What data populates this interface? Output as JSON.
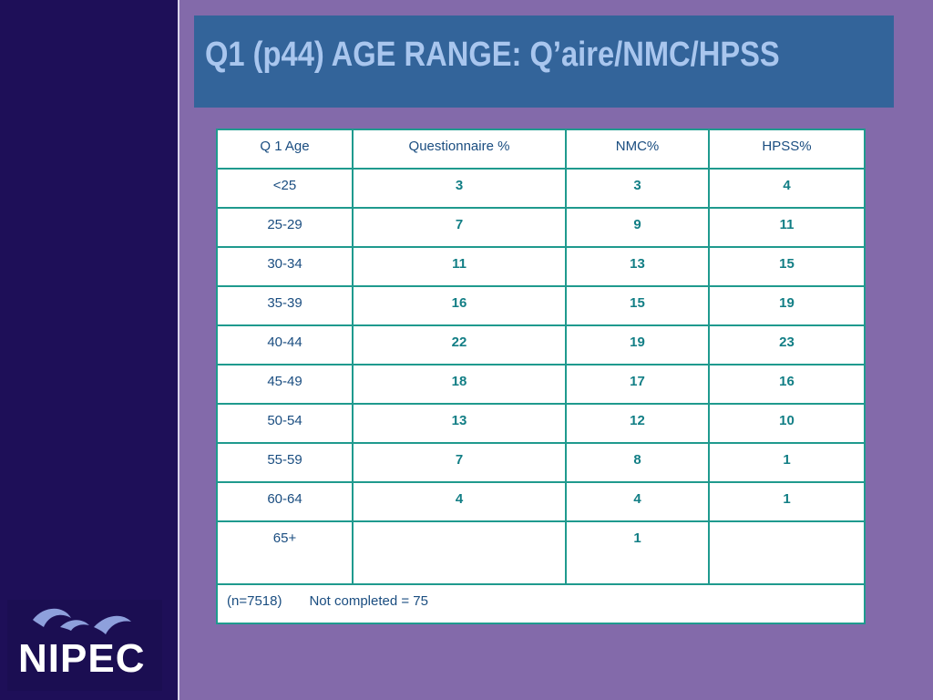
{
  "slide": {
    "title": "Q1 (p44) AGE RANGE: Q’aire/NMC/HPSS",
    "logo": {
      "text": "NIPEC",
      "accent_color": "#8ea0dc"
    },
    "colors": {
      "background": "#836aaa",
      "sidebar": "#1e0f58",
      "title_bar": "#33649a",
      "title_text": "#a9c6ee",
      "table_border": "#1f9a8e",
      "label_text": "#1a4d80",
      "value_text": "#127e85"
    }
  },
  "table": {
    "headers": [
      "Q 1 Age",
      "Questionnaire %",
      "NMC%",
      "HPSS%"
    ],
    "rows": [
      [
        "<25",
        "3",
        "3",
        "4"
      ],
      [
        "25-29",
        "7",
        "9",
        "11"
      ],
      [
        "30-34",
        "11",
        "13",
        "15"
      ],
      [
        "35-39",
        "16",
        "15",
        "19"
      ],
      [
        "40-44",
        "22",
        "19",
        "23"
      ],
      [
        "45-49",
        "18",
        "17",
        "16"
      ],
      [
        "50-54",
        "13",
        "12",
        "10"
      ],
      [
        "55-59",
        "7",
        "8",
        "1"
      ],
      [
        "60-64",
        "4",
        "4",
        "1"
      ],
      [
        "65+",
        "",
        "1",
        ""
      ]
    ],
    "footer": {
      "sample": "(n=7518)",
      "not_completed": "Not completed = 75"
    }
  }
}
